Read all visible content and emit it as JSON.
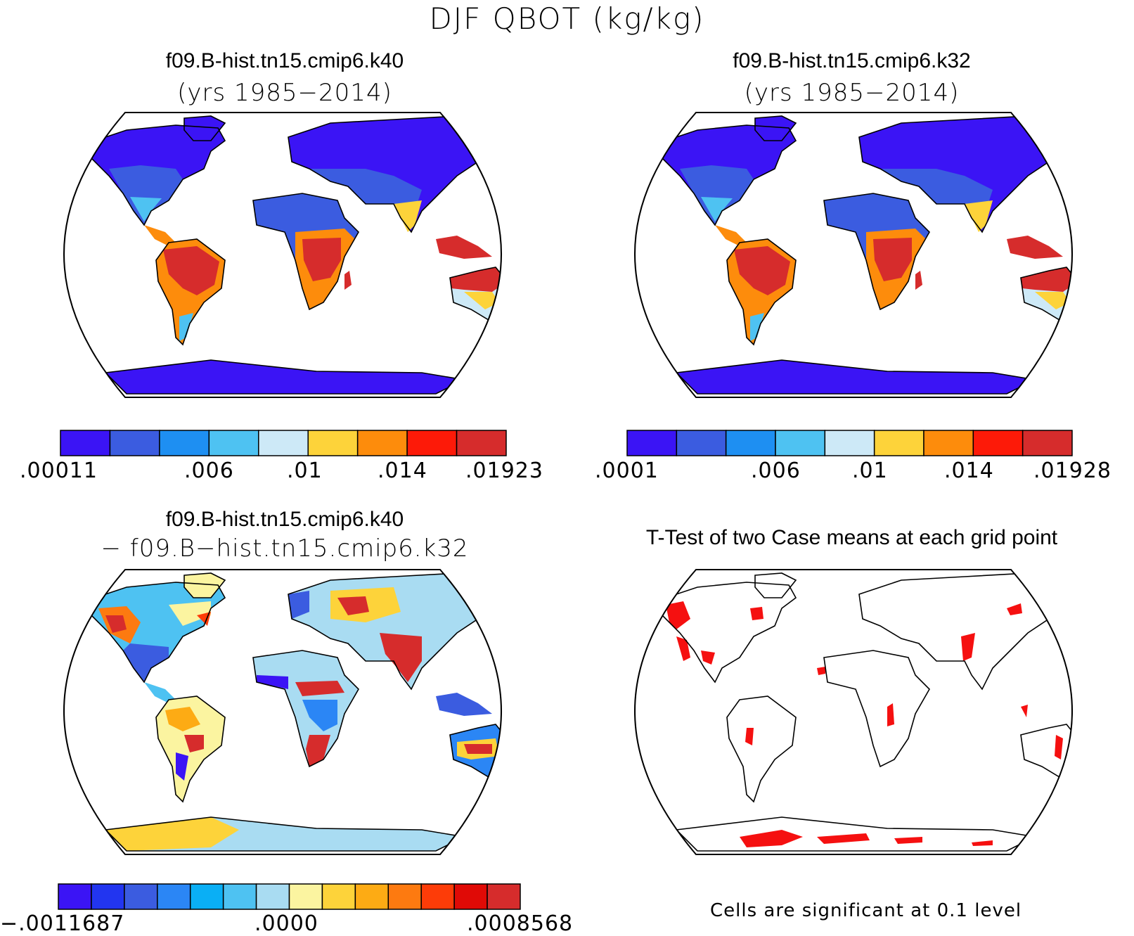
{
  "figure": {
    "title": "DJF QBOT (kg/kg)"
  },
  "panels": [
    {
      "id": "case1",
      "title": "f09.B-hist.tn15.cmip6.k40",
      "subtitle": "(yrs 1985−2014)",
      "colorbar": {
        "colors": [
          "#3b14f5",
          "#3b5ce0",
          "#1e8ff2",
          "#4ec2f2",
          "#cde9f7",
          "#fdd33a",
          "#fd8c0c",
          "#fd1a08",
          "#d62c2c"
        ],
        "labels": [
          ".00011",
          ".006",
          ".01",
          ".014",
          ".01923"
        ]
      }
    },
    {
      "id": "case2",
      "title": "f09.B-hist.tn15.cmip6.k32",
      "subtitle": "(yrs 1985−2014)",
      "colorbar": {
        "colors": [
          "#3b14f5",
          "#3b5ce0",
          "#1e8ff2",
          "#4ec2f2",
          "#cde9f7",
          "#fdd33a",
          "#fd8c0c",
          "#fd1a08",
          "#d62c2c"
        ],
        "labels": [
          ".0001",
          ".006",
          ".01",
          ".014",
          ".01928"
        ]
      }
    },
    {
      "id": "difference",
      "title": "f09.B-hist.tn15.cmip6.k40",
      "subtitle": "− f09.B−hist.tn15.cmip6.k32",
      "colorbar": {
        "colors": [
          "#3b14f5",
          "#2235f0",
          "#3b5ce0",
          "#2b86f5",
          "#0aaff5",
          "#4ec2f2",
          "#a9dcf2",
          "#fbf4a0",
          "#fdd33a",
          "#fdab14",
          "#fd7a10",
          "#fd3c08",
          "#e00a06",
          "#d62c2c"
        ],
        "labels": [
          "−.0011687",
          ".0000",
          ".0008568"
        ]
      }
    },
    {
      "id": "ttest",
      "title": "T-Test of two Case means at each grid point",
      "footnote": "Cells are significant at 0.1 level",
      "significance_color": "#f51010"
    }
  ]
}
